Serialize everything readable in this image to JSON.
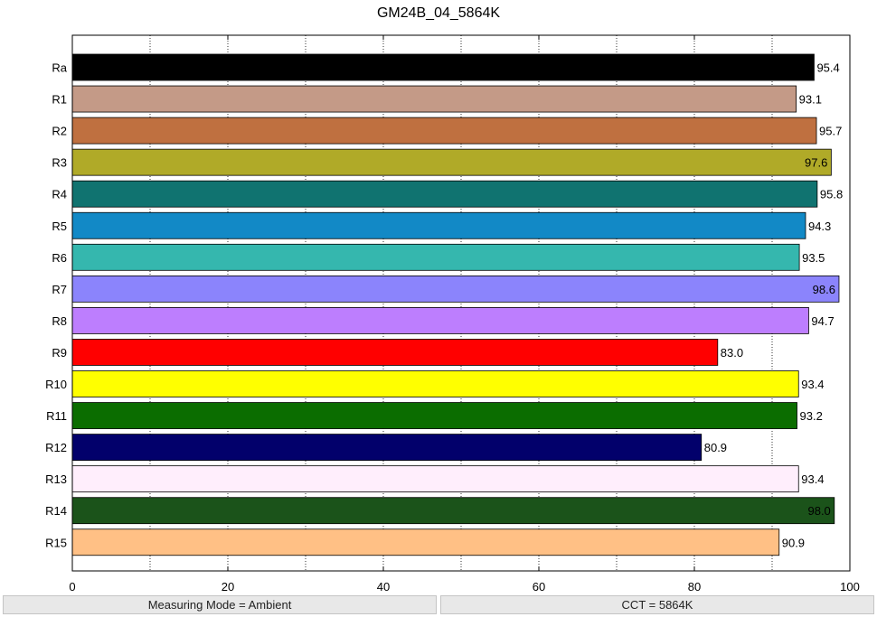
{
  "chart_data": {
    "type": "bar",
    "orientation": "horizontal",
    "title": "GM24B_04_5864K",
    "categories": [
      "Ra",
      "R1",
      "R2",
      "R3",
      "R4",
      "R5",
      "R6",
      "R7",
      "R8",
      "R9",
      "R10",
      "R11",
      "R12",
      "R13",
      "R14",
      "R15"
    ],
    "values": [
      95.4,
      93.1,
      95.7,
      97.6,
      95.8,
      94.3,
      93.5,
      98.6,
      94.7,
      83.0,
      93.4,
      93.2,
      80.9,
      93.4,
      98.0,
      90.9
    ],
    "value_labels": [
      "95.4",
      "93.1",
      "95.7",
      "97.6",
      "95.8",
      "94.3",
      "93.5",
      "98.6",
      "94.7",
      "83.0",
      "93.4",
      "93.2",
      "80.9",
      "93.4",
      "98.0",
      "90.9"
    ],
    "colors": [
      "#000000",
      "#c49a87",
      "#bf7040",
      "#b0aa28",
      "#107370",
      "#1289c6",
      "#35b7ae",
      "#8b84fc",
      "#bd7efe",
      "#ff0000",
      "#ffff00",
      "#0b6d00",
      "#02006b",
      "#ffeefc",
      "#1b531a",
      "#ffc085"
    ],
    "xlim": [
      0,
      100
    ],
    "x_ticks": [
      "0",
      "20",
      "40",
      "60",
      "80",
      "100"
    ],
    "x_tick_values": [
      0,
      20,
      40,
      60,
      80,
      100
    ],
    "grid_x_values": [
      10,
      20,
      30,
      40,
      50,
      60,
      70,
      80,
      90
    ],
    "grid": "vertical dotted",
    "xlabel": "",
    "ylabel": ""
  },
  "status": {
    "left": "Measuring Mode = Ambient",
    "right": "CCT = 5864K"
  }
}
